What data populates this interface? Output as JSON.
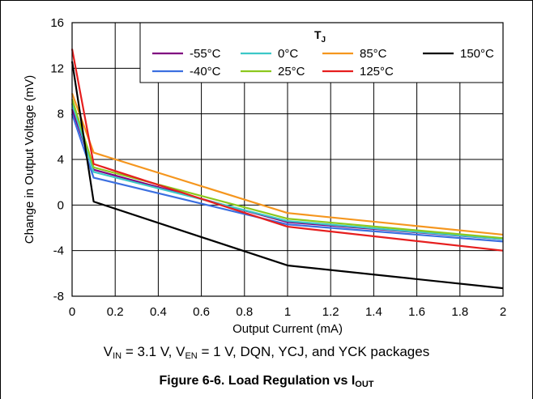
{
  "chart_data": {
    "type": "line",
    "xlabel": "Output Current (mA)",
    "ylabel": "Change in Output Voltage (mV)",
    "xlim": [
      0,
      2
    ],
    "ylim": [
      -8,
      16
    ],
    "x_ticks": [
      "0",
      "0.2",
      "0.4",
      "0.6",
      "0.8",
      "1",
      "1.2",
      "1.4",
      "1.6",
      "1.8",
      "2"
    ],
    "y_ticks": [
      "-8",
      "-4",
      "0",
      "4",
      "8",
      "12",
      "16"
    ],
    "x_tick_values": [
      0,
      0.2,
      0.4,
      0.6,
      0.8,
      1,
      1.2,
      1.4,
      1.6,
      1.8,
      2
    ],
    "y_tick_values": [
      -8,
      -4,
      0,
      4,
      8,
      12,
      16
    ],
    "grid": true,
    "legend_title": "T",
    "legend_title_sub": "J",
    "legend_placement": "top-right",
    "series": [
      {
        "name": "-55°C",
        "color": "#800080",
        "x": [
          0,
          0.1,
          1,
          2
        ],
        "y": [
          8.4,
          3.1,
          -1.5,
          -3.0
        ]
      },
      {
        "name": "-40°C",
        "color": "#3b6fe0",
        "x": [
          0,
          0.1,
          1,
          2
        ],
        "y": [
          8.0,
          2.4,
          -1.7,
          -3.2
        ]
      },
      {
        "name": "0°C",
        "color": "#3cc8c8",
        "x": [
          0,
          0.1,
          1,
          2
        ],
        "y": [
          8.9,
          2.9,
          -1.4,
          -3.0
        ]
      },
      {
        "name": "25°C",
        "color": "#8cc81e",
        "x": [
          0,
          0.1,
          1,
          2
        ],
        "y": [
          9.3,
          3.3,
          -1.2,
          -2.9
        ]
      },
      {
        "name": "85°C",
        "color": "#f5961e",
        "x": [
          0,
          0.1,
          1,
          2
        ],
        "y": [
          9.8,
          4.6,
          -0.7,
          -2.6
        ]
      },
      {
        "name": "125°C",
        "color": "#e61e1e",
        "x": [
          0,
          0.1,
          1,
          2
        ],
        "y": [
          13.7,
          3.6,
          -1.9,
          -4.0
        ]
      },
      {
        "name": "150°C",
        "color": "#000000",
        "x": [
          0,
          0.1,
          1,
          2
        ],
        "y": [
          12.6,
          0.3,
          -5.3,
          -7.3
        ]
      }
    ]
  },
  "conditions": {
    "v_in_label": "V",
    "v_in_sub": "IN",
    "v_in_text": " = 3.1 V, ",
    "v_en_label": "V",
    "v_en_sub": "EN",
    "v_en_text": " = 1 V, DQN, YCJ, and YCK packages"
  },
  "caption": {
    "text": "Figure 6-6. Load Regulation vs I",
    "sub": "OUT"
  }
}
